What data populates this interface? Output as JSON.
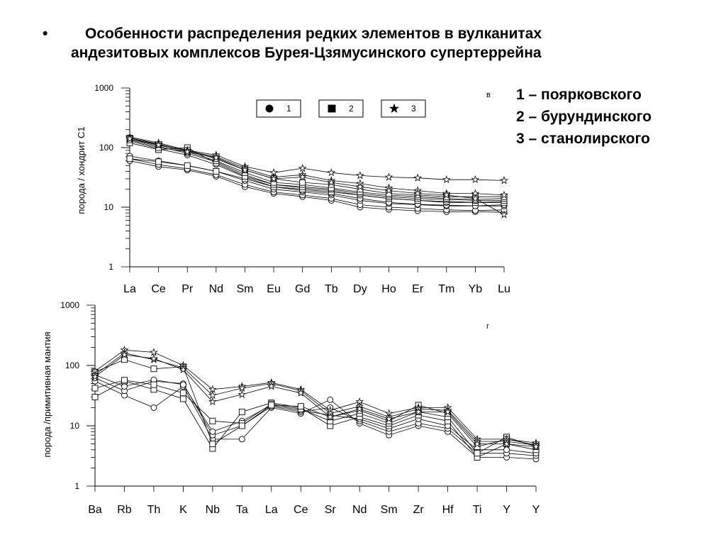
{
  "slide": {
    "bullet": "•",
    "title_line1": "Особенности распределения редких элементов в вулканитах",
    "title_line2": "андезитовых комплексов Бурея-Цзямусинского супертеррейна"
  },
  "legend_list": [
    "1 – поярковского",
    "2 – бурундинского",
    "3 – станолирского"
  ],
  "chart_data": [
    {
      "type": "line",
      "panel_label": "в",
      "ylabel": "порода / хондрит С1",
      "yscale": "log",
      "ylim": [
        1,
        1000
      ],
      "yticks": [
        "1",
        "10",
        "100",
        "1000"
      ],
      "categories": [
        "La",
        "Ce",
        "Pr",
        "Nd",
        "Sm",
        "Eu",
        "Gd",
        "Tb",
        "Dy",
        "Ho",
        "Er",
        "Tm",
        "Yb",
        "Lu"
      ],
      "legend": [
        {
          "marker": "circle",
          "label": "1"
        },
        {
          "marker": "square",
          "label": "2"
        },
        {
          "marker": "star",
          "label": "3"
        }
      ],
      "series": [
        {
          "group": 1,
          "values": [
            60,
            48,
            42,
            33,
            22,
            17,
            15,
            13,
            10,
            9.2,
            8.7,
            8.4,
            8.4,
            8.2
          ]
        },
        {
          "group": 1,
          "values": [
            65,
            52,
            44,
            35,
            24,
            18,
            16,
            14,
            11,
            10,
            9.5,
            9,
            8.8,
            9
          ]
        },
        {
          "group": 1,
          "values": [
            72,
            60,
            50,
            40,
            28,
            20,
            18,
            16,
            13,
            11.5,
            11,
            10.5,
            10.5,
            10.5
          ]
        },
        {
          "group": 1,
          "values": [
            130,
            95,
            75,
            52,
            32,
            22,
            19,
            17,
            14,
            12,
            11.2,
            10.8,
            10.5,
            11
          ]
        },
        {
          "group": 1,
          "values": [
            140,
            105,
            80,
            58,
            35,
            24,
            21,
            19,
            16,
            14,
            13,
            12,
            12,
            12.5
          ]
        },
        {
          "group": 2,
          "values": [
            65,
            58,
            50,
            40,
            30,
            22,
            20,
            18,
            16,
            14,
            13,
            12.5,
            12,
            12
          ]
        },
        {
          "group": 2,
          "values": [
            120,
            92,
            100,
            55,
            33,
            24,
            22,
            20,
            17,
            15,
            14,
            13.5,
            13,
            13
          ]
        },
        {
          "group": 2,
          "values": [
            135,
            100,
            85,
            60,
            38,
            26,
            24,
            21,
            18,
            16,
            15,
            14,
            13.5,
            14
          ]
        },
        {
          "group": 2,
          "values": [
            145,
            112,
            90,
            65,
            42,
            30,
            26,
            24,
            20,
            17,
            16,
            15,
            15,
            15
          ]
        },
        {
          "group": 3,
          "values": [
            150,
            120,
            90,
            75,
            48,
            38,
            45,
            38,
            34,
            32,
            31,
            29,
            29,
            28
          ]
        },
        {
          "group": 3,
          "values": [
            145,
            115,
            88,
            70,
            45,
            32,
            35,
            28,
            25,
            21,
            19,
            17,
            17,
            16
          ]
        },
        {
          "group": 3,
          "values": [
            140,
            110,
            85,
            68,
            42,
            30,
            32,
            26,
            22,
            19,
            17,
            16,
            14,
            7.5
          ]
        }
      ]
    },
    {
      "type": "line",
      "panel_label": "г",
      "ylabel": "порода /примитивная мантия",
      "yscale": "log",
      "ylim": [
        1,
        1000
      ],
      "yticks": [
        "1",
        "10",
        "100",
        "1000"
      ],
      "categories": [
        "Ba",
        "Rb",
        "Th",
        "K",
        "Nb",
        "Ta",
        "La",
        "Ce",
        "Sr",
        "Nd",
        "Sm",
        "Zr",
        "Hf",
        "Ti",
        "Y",
        "Y"
      ],
      "series": [
        {
          "group": 1,
          "values": [
            55,
            32,
            20,
            45,
            6,
            6,
            20,
            16,
            27,
            11,
            7,
            10,
            8,
            3,
            3,
            2.8
          ]
        },
        {
          "group": 1,
          "values": [
            62,
            38,
            55,
            50,
            7,
            10,
            21,
            17,
            20,
            12,
            8,
            11,
            9,
            3.5,
            3.5,
            3.2
          ]
        },
        {
          "group": 1,
          "values": [
            70,
            45,
            58,
            48,
            8,
            12,
            22,
            18,
            15,
            13,
            9,
            13,
            10,
            4,
            4,
            3.5
          ]
        },
        {
          "group": 2,
          "values": [
            30,
            55,
            40,
            28,
            4.2,
            17,
            24,
            20,
            10,
            14,
            10,
            15,
            12,
            3,
            5,
            4
          ]
        },
        {
          "group": 2,
          "values": [
            42,
            57,
            48,
            35,
            12,
            11,
            23,
            19,
            12,
            16,
            11,
            17,
            14,
            3.5,
            6.5,
            4.5
          ]
        },
        {
          "group": 2,
          "values": [
            78,
            125,
            88,
            95,
            5,
            10,
            22,
            21,
            14,
            18,
            12,
            22,
            16,
            4.5,
            6,
            4.8
          ]
        },
        {
          "group": 3,
          "values": [
            80,
            180,
            165,
            100,
            40,
            45,
            52,
            40,
            18,
            25,
            16,
            20,
            20,
            6,
            6,
            5.2
          ]
        },
        {
          "group": 3,
          "values": [
            70,
            160,
            125,
            92,
            32,
            42,
            50,
            38,
            16,
            21,
            14,
            19,
            18,
            5.5,
            5.5,
            4.8
          ]
        },
        {
          "group": 3,
          "values": [
            65,
            150,
            130,
            85,
            25,
            33,
            45,
            35,
            14,
            19,
            13,
            17,
            17,
            5,
            5,
            4.5
          ]
        }
      ]
    }
  ]
}
